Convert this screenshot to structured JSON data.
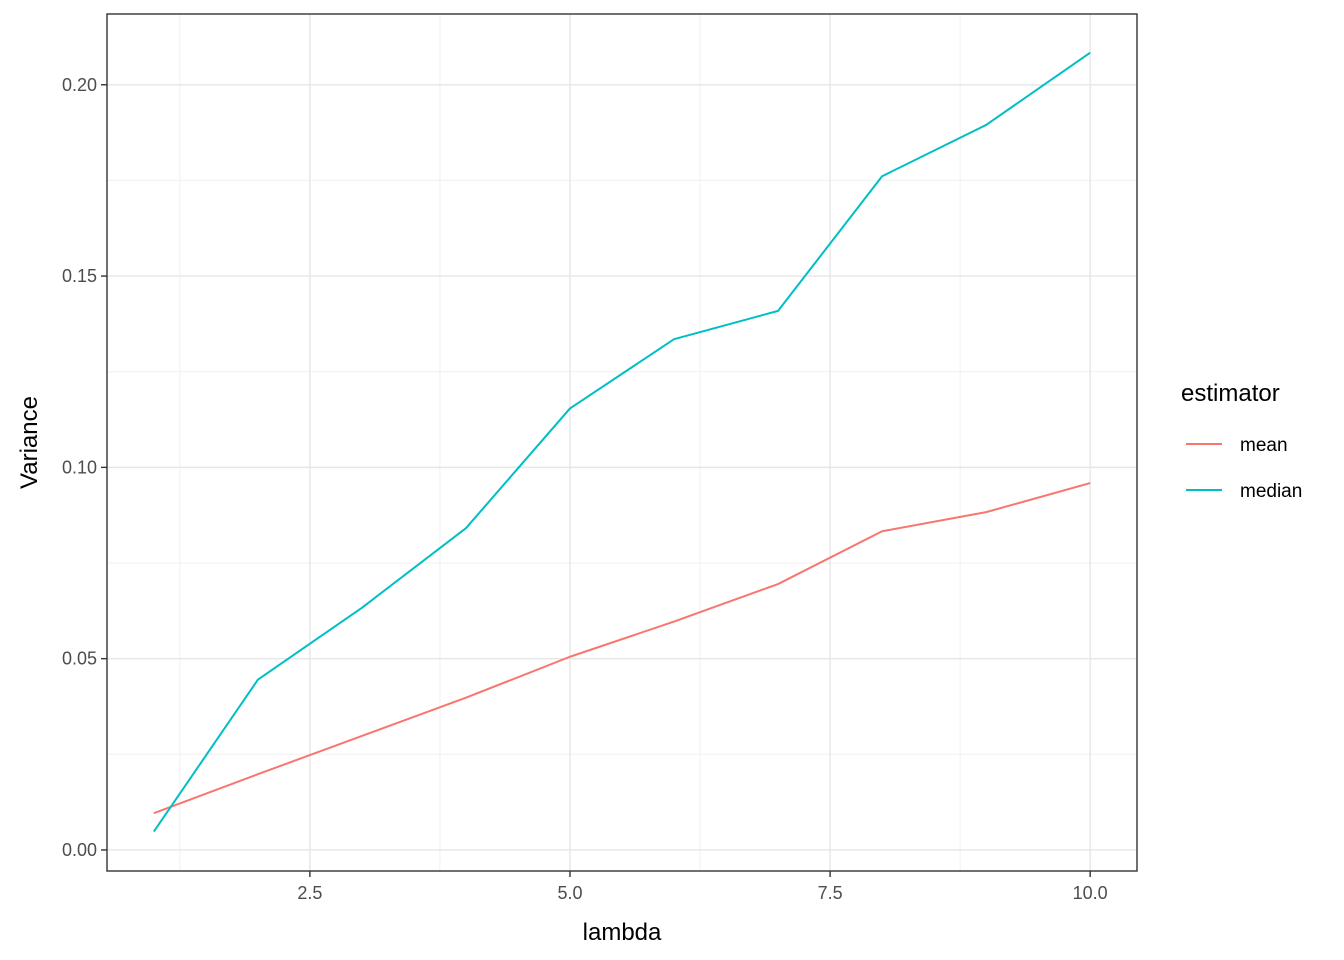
{
  "chart_data": {
    "type": "line",
    "xlabel": "lambda",
    "ylabel": "Variance",
    "xlim": [
      0.55,
      10.45
    ],
    "ylim": [
      -0.0055,
      0.2185
    ],
    "x_ticks": [
      {
        "value": 2.5,
        "label": "2.5"
      },
      {
        "value": 5.0,
        "label": "5.0"
      },
      {
        "value": 7.5,
        "label": "7.5"
      },
      {
        "value": 10.0,
        "label": "10.0"
      }
    ],
    "y_ticks": [
      {
        "value": 0.0,
        "label": "0.00"
      },
      {
        "value": 0.05,
        "label": "0.05"
      },
      {
        "value": 0.1,
        "label": "0.10"
      },
      {
        "value": 0.15,
        "label": "0.15"
      },
      {
        "value": 0.2,
        "label": "0.20"
      }
    ],
    "x_minor": [
      1.25,
      3.75,
      6.25,
      8.75
    ],
    "y_minor": [
      0.025,
      0.075,
      0.125,
      0.175
    ],
    "grid": true,
    "legend": {
      "title": "estimator",
      "position": "right"
    },
    "x": [
      1,
      2,
      3,
      4,
      5,
      6,
      7,
      8,
      9,
      10
    ],
    "series": [
      {
        "name": "mean",
        "color": "#F8766D",
        "values": [
          0.0096,
          0.0198,
          0.0298,
          0.0398,
          0.0505,
          0.0597,
          0.0695,
          0.0833,
          0.0883,
          0.0959
        ]
      },
      {
        "name": "median",
        "color": "#00BFC4",
        "values": [
          0.0048,
          0.0445,
          0.0633,
          0.0841,
          0.1154,
          0.1335,
          0.1409,
          0.1761,
          0.1895,
          0.2084
        ]
      }
    ]
  }
}
